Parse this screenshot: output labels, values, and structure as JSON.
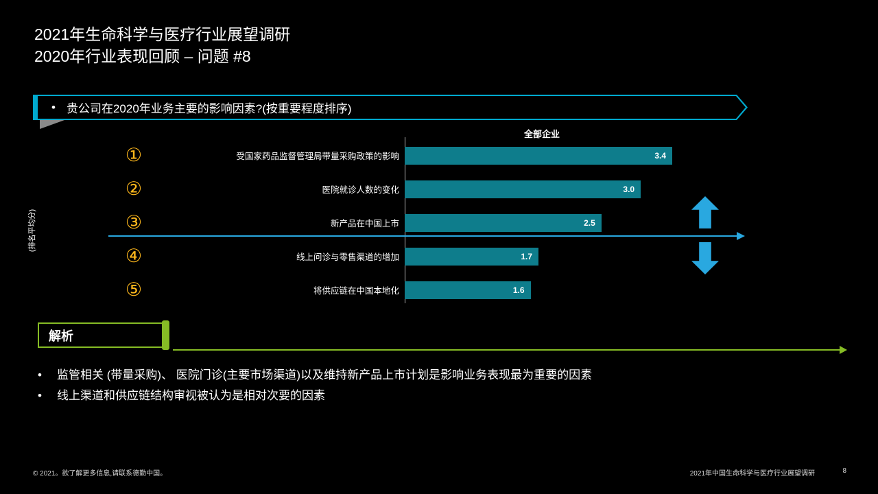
{
  "slide": {
    "title_line1": "2021年生命科学与医疗行业展望调研",
    "title_line2": "2020年行业表现回顾 – 问题 #8",
    "question_bullet": "•",
    "question": "贵公司在2020年业务主要的影响因素?(按重要程度排序)",
    "analysis_label": "解析",
    "bullets": [
      "监管相关 (带量采购)、 医院门诊(主要市场渠道)以及维持新产品上市计划是影响业务表现最为重要的因素",
      "线上渠道和供应链结构审视被认为是相对次要的因素"
    ],
    "footer_left": "© 2021。欲了解更多信息,请联系德勤中国。",
    "footer_right": "2021年中国生命科学与医疗行业展望调研",
    "page_number": "8"
  },
  "chart_data": {
    "type": "bar",
    "orientation": "horizontal",
    "title": "全部企业",
    "ylabel": "(排名平均分)",
    "categories": [
      "受国家药品监督管理局带量采购政策的影响",
      "医院就诊人数的变化",
      "新产品在中国上市",
      "线上问诊与零售渠道的增加",
      "将供应链在中国本地化"
    ],
    "values": [
      3.4,
      3.0,
      2.5,
      1.7,
      1.6
    ],
    "rank_markers": [
      "①",
      "②",
      "③",
      "④",
      "⑤"
    ],
    "xlim": [
      0,
      3.5
    ],
    "grid": false,
    "legend": false
  },
  "colors": {
    "background": "#000000",
    "bar_teal": "#0E7D8C",
    "question_border_teal": "#00A9CE",
    "rank_yellow": "#FFB81C",
    "arrow_blue": "#29A8E0",
    "analysis_green": "#86BC25",
    "text_white": "#FFFFFF"
  }
}
